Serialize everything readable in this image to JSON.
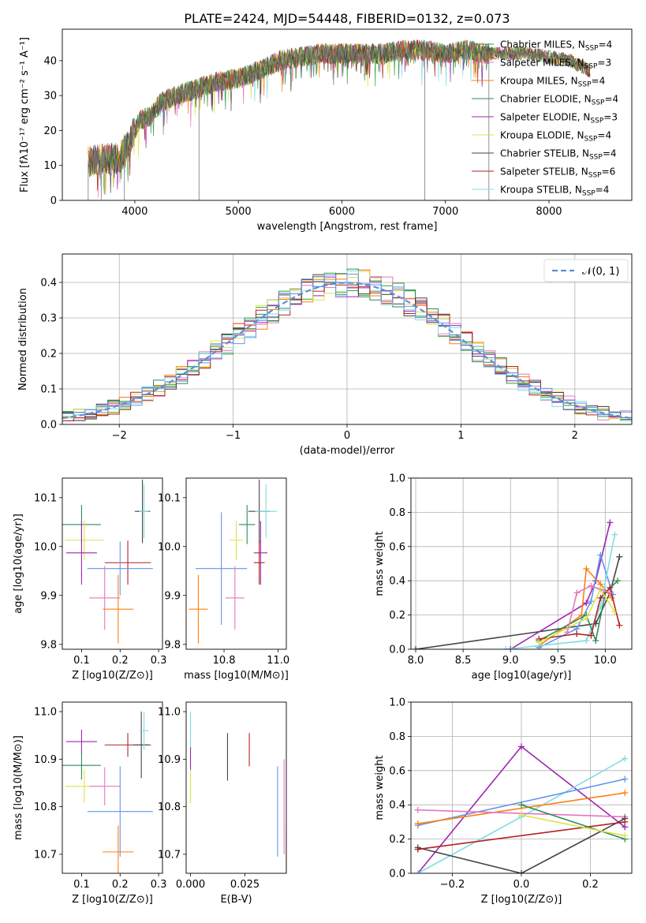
{
  "figure_title": "PLATE=2424, MJD=54448, FIBERID=0132, z=0.073",
  "colors": {
    "Chabrier MILES": "#2ca02c",
    "Salpeter MILES": "#e377c2",
    "Kroupa MILES": "#ff7f0e",
    "Chabrier ELODIE": "#2e8b57",
    "Salpeter ELODIE": "#9c27b0",
    "Kroupa ELODIE": "#dde34a",
    "Chabrier STELIB": "#444444",
    "Salpeter STELIB": "#b22222",
    "Kroupa STELIB": "#7fdde4",
    "extra": "#6495ed",
    "normal": "#5b8fd6"
  },
  "chart_data": [
    {
      "id": "spectrum",
      "type": "line",
      "xlabel": "wavelength [Angstrom, rest frame]",
      "ylabel": "Flux [fλ10⁻¹⁷ erg cm⁻² s⁻¹ A⁻¹]",
      "xlim": [
        3300,
        8800
      ],
      "ylim": [
        0,
        49
      ],
      "xticks": [
        4000,
        5000,
        6000,
        7000,
        8000
      ],
      "yticks": [
        0,
        10,
        20,
        30,
        40
      ],
      "legend_placement": "right",
      "legend": [
        {
          "name": "Chabrier MILES",
          "nssp": "4"
        },
        {
          "name": "Salpeter MILES",
          "nssp": "3"
        },
        {
          "name": "Kroupa MILES",
          "nssp": "4"
        },
        {
          "name": "Chabrier ELODIE",
          "nssp": "4"
        },
        {
          "name": "Salpeter ELODIE",
          "nssp": "3"
        },
        {
          "name": "Kroupa ELODIE",
          "nssp": "4"
        },
        {
          "name": "Chabrier STELIB",
          "nssp": "4"
        },
        {
          "name": "Salpeter STELIB",
          "nssp": "6"
        },
        {
          "name": "Kroupa STELIB",
          "nssp": "4"
        }
      ],
      "continuum": {
        "x": [
          3550,
          3700,
          3850,
          3950,
          4050,
          4150,
          4250,
          4400,
          4600,
          4800,
          5000,
          5200,
          5400,
          5600,
          5800,
          6000,
          6200,
          6400,
          6600,
          6800,
          7000,
          7200,
          7400,
          7600,
          7800,
          8000,
          8200,
          8400
        ],
        "y": [
          11,
          12,
          12,
          17,
          23,
          24,
          28,
          30,
          32,
          34,
          35,
          37,
          40,
          41,
          42,
          42,
          42,
          42,
          43,
          43,
          42,
          43,
          42,
          42,
          42,
          41,
          40,
          37
        ]
      },
      "dips": [
        [
          4620,
          0
        ],
        [
          6800,
          0
        ],
        [
          7420,
          0
        ],
        [
          3550,
          0
        ],
        [
          3900,
          0
        ]
      ]
    },
    {
      "id": "residuals",
      "type": "histogram",
      "xlabel": "(data-model)/error",
      "ylabel": "Normed distribution",
      "xlim": [
        -2.5,
        2.5
      ],
      "ylim": [
        0,
        0.48
      ],
      "xticks": [
        -2,
        -1,
        0,
        1,
        2
      ],
      "yticks": [
        0.0,
        0.1,
        0.2,
        0.3,
        0.4
      ],
      "grid": true,
      "legend_placement": "top-right",
      "legend": [
        "𝒩(0, 1)"
      ],
      "bin_width": 0.1
    },
    {
      "id": "age-vs-z",
      "type": "errorbar",
      "xlabel": "Z [log10(Z/Z⊙)]",
      "ylabel": "age  [log10(age/yr)]",
      "xlim": [
        0.05,
        0.31
      ],
      "ylim": [
        9.79,
        10.14
      ],
      "xticks": [
        0.1,
        0.2,
        0.3
      ],
      "yticks": [
        9.8,
        9.9,
        10.0,
        10.1
      ],
      "points": [
        {
          "series": "Chabrier ELODIE",
          "x": 0.1,
          "y": 10.045,
          "xerr": 0.05,
          "yerr": 0.04
        },
        {
          "series": "Kroupa ELODIE",
          "x": 0.107,
          "y": 10.013,
          "xerr": 0.05,
          "yerr": 0.04
        },
        {
          "series": "Salpeter ELODIE",
          "x": 0.1,
          "y": 9.987,
          "xerr": 0.04,
          "yerr": 0.065
        },
        {
          "series": "Chabrier STELIB",
          "x": 0.258,
          "y": 10.072,
          "xerr": 0.02,
          "yerr": 0.065
        },
        {
          "series": "Kroupa STELIB",
          "x": 0.262,
          "y": 10.072,
          "xerr": 0.012,
          "yerr": 0.055
        },
        {
          "series": "Salpeter STELIB",
          "x": 0.22,
          "y": 9.967,
          "xerr": 0.06,
          "yerr": 0.045
        },
        {
          "series": "extra",
          "x": 0.2,
          "y": 9.955,
          "xerr": 0.085,
          "yerr": 0.055
        },
        {
          "series": "Salpeter MILES",
          "x": 0.16,
          "y": 9.895,
          "xerr": 0.04,
          "yerr": 0.065
        },
        {
          "series": "Kroupa MILES",
          "x": 0.195,
          "y": 9.872,
          "xerr": 0.04,
          "yerr": 0.07
        }
      ]
    },
    {
      "id": "age-vs-mass",
      "type": "errorbar",
      "xlabel": "mass [log10(M/M⊙)]",
      "ylabel": "",
      "xlim": [
        10.66,
        11.03
      ],
      "ylim": [
        9.79,
        10.14
      ],
      "xticks": [
        10.8,
        11.0
      ],
      "yticks": [
        9.8,
        9.9,
        10.0,
        10.1
      ],
      "points": [
        {
          "series": "Chabrier STELIB",
          "x": 10.93,
          "y": 10.072,
          "xerr": 0.04,
          "yerr": 0.065
        },
        {
          "series": "Kroupa STELIB",
          "x": 10.955,
          "y": 10.072,
          "xerr": 0.04,
          "yerr": 0.055
        },
        {
          "series": "Chabrier ELODIE",
          "x": 10.885,
          "y": 10.045,
          "xerr": 0.03,
          "yerr": 0.04
        },
        {
          "series": "Kroupa ELODIE",
          "x": 10.845,
          "y": 10.013,
          "xerr": 0.025,
          "yerr": 0.04
        },
        {
          "series": "Salpeter ELODIE",
          "x": 10.935,
          "y": 9.987,
          "xerr": 0.025,
          "yerr": 0.065
        },
        {
          "series": "Salpeter STELIB",
          "x": 10.93,
          "y": 9.967,
          "xerr": 0.02,
          "yerr": 0.045
        },
        {
          "series": "extra",
          "x": 10.79,
          "y": 9.955,
          "xerr": 0.095,
          "yerr": 0.115
        },
        {
          "series": "Salpeter MILES",
          "x": 10.84,
          "y": 9.895,
          "xerr": 0.035,
          "yerr": 0.065
        },
        {
          "series": "Kroupa MILES",
          "x": 10.705,
          "y": 9.872,
          "xerr": 0.035,
          "yerr": 0.07
        }
      ]
    },
    {
      "id": "weight-vs-age",
      "type": "line",
      "xlabel": "age  [log10(age/yr)]",
      "ylabel": "mass weight",
      "xlim": [
        7.95,
        10.28
      ],
      "ylim": [
        0,
        1.0
      ],
      "xticks": [
        8.0,
        8.5,
        9.0,
        9.5,
        10.0
      ],
      "yticks": [
        0.0,
        0.2,
        0.4,
        0.6,
        0.8,
        1.0
      ],
      "grid": true,
      "series": [
        {
          "name": "Chabrier STELIB",
          "x": [
            8.0,
            9.9,
            10.05,
            10.15
          ],
          "y": [
            0.0,
            0.15,
            0.33,
            0.54
          ]
        },
        {
          "name": "Salpeter ELODIE",
          "x": [
            9.0,
            9.8,
            9.9,
            10.05
          ],
          "y": [
            0.0,
            0.27,
            0.4,
            0.74
          ]
        },
        {
          "name": "Kroupa MILES",
          "x": [
            9.3,
            9.75,
            9.8,
            9.95,
            10.07
          ],
          "y": [
            0.02,
            0.2,
            0.47,
            0.38,
            0.3
          ]
        },
        {
          "name": "extra",
          "x": [
            9.3,
            9.7,
            9.85,
            9.95,
            10.08
          ],
          "y": [
            0.01,
            0.12,
            0.28,
            0.55,
            0.32
          ]
        },
        {
          "name": "Kroupa STELIB",
          "x": [
            8.95,
            9.8,
            9.95,
            10.1
          ],
          "y": [
            0.0,
            0.05,
            0.25,
            0.67
          ]
        },
        {
          "name": "Chabrier ELODIE",
          "x": [
            9.3,
            9.8,
            9.9,
            10.0,
            10.13
          ],
          "y": [
            0.05,
            0.2,
            0.05,
            0.33,
            0.4
          ]
        },
        {
          "name": "Salpeter STELIB",
          "x": [
            9.3,
            9.7,
            9.85,
            9.95,
            10.05,
            10.15
          ],
          "y": [
            0.06,
            0.09,
            0.08,
            0.3,
            0.36,
            0.14
          ]
        },
        {
          "name": "Kroupa ELODIE",
          "x": [
            9.3,
            9.8,
            9.95,
            10.1
          ],
          "y": [
            0.04,
            0.18,
            0.35,
            0.22
          ]
        },
        {
          "name": "Salpeter MILES",
          "x": [
            9.6,
            9.7,
            9.85,
            10.05
          ],
          "y": [
            0.1,
            0.33,
            0.37,
            0.33
          ]
        }
      ]
    },
    {
      "id": "mass-vs-z",
      "type": "errorbar",
      "xlabel": "Z [log10(Z/Z⊙)]",
      "ylabel": "mass [log10(M/M⊙)]",
      "xlim": [
        0.05,
        0.31
      ],
      "ylim": [
        10.66,
        11.02
      ],
      "xticks": [
        0.1,
        0.2,
        0.3
      ],
      "yticks": [
        10.7,
        10.8,
        10.9,
        11.0
      ],
      "points": [
        {
          "series": "Salpeter ELODIE",
          "x": 0.1,
          "y": 10.937,
          "xerr": 0.04,
          "yerr": 0.025
        },
        {
          "series": "Salpeter STELIB",
          "x": 0.22,
          "y": 10.93,
          "xerr": 0.06,
          "yerr": 0.025
        },
        {
          "series": "Chabrier STELIB",
          "x": 0.255,
          "y": 10.93,
          "xerr": 0.02,
          "yerr": 0.07
        },
        {
          "series": "Kroupa STELIB",
          "x": 0.262,
          "y": 10.96,
          "xerr": 0.012,
          "yerr": 0.04
        },
        {
          "series": "Chabrier ELODIE",
          "x": 0.1,
          "y": 10.887,
          "xerr": 0.05,
          "yerr": 0.03
        },
        {
          "series": "Kroupa ELODIE",
          "x": 0.107,
          "y": 10.843,
          "xerr": 0.05,
          "yerr": 0.035
        },
        {
          "series": "Salpeter MILES",
          "x": 0.16,
          "y": 10.843,
          "xerr": 0.04,
          "yerr": 0.04
        },
        {
          "series": "extra",
          "x": 0.2,
          "y": 10.79,
          "xerr": 0.085,
          "yerr": 0.095
        },
        {
          "series": "Kroupa MILES",
          "x": 0.195,
          "y": 10.705,
          "xerr": 0.04,
          "yerr": 0.055
        }
      ]
    },
    {
      "id": "mass-vs-ebv",
      "type": "errorbar",
      "xlabel": "E(B-V)",
      "ylabel": "",
      "xlim": [
        -0.002,
        0.044
      ],
      "ylim": [
        10.66,
        11.02
      ],
      "xticks": [
        0.0,
        0.025
      ],
      "xtick_labels": [
        "0.000",
        "0.025"
      ],
      "yticks": [
        10.7,
        10.8,
        10.9,
        11.0
      ],
      "points": [
        {
          "series": "Kroupa STELIB",
          "x": 0.0,
          "y": 10.96,
          "xerr": 0,
          "yerr": 0.04
        },
        {
          "series": "Salpeter ELODIE",
          "x": 0.0,
          "y": 10.9,
          "xerr": 0,
          "yerr": 0.025
        },
        {
          "series": "Kroupa ELODIE",
          "x": 0.0,
          "y": 10.843,
          "xerr": 0,
          "yerr": 0.035
        },
        {
          "series": "Chabrier STELIB",
          "x": 0.017,
          "y": 10.905,
          "xerr": 0,
          "yerr": 0.05
        },
        {
          "series": "Salpeter STELIB",
          "x": 0.027,
          "y": 10.92,
          "xerr": 0,
          "yerr": 0.035
        },
        {
          "series": "extra",
          "x": 0.04,
          "y": 10.79,
          "xerr": 0,
          "yerr": 0.095
        },
        {
          "series": "Salpeter MILES",
          "x": 0.043,
          "y": 10.8,
          "xerr": 0,
          "yerr": 0.1
        },
        {
          "series": "Kroupa MILES",
          "x": 0.044,
          "y": 10.705,
          "xerr": 0,
          "yerr": 0.055
        }
      ]
    },
    {
      "id": "weight-vs-z",
      "type": "line",
      "xlabel": "Z [log10(Z/Z⊙)]",
      "ylabel": "mass weight",
      "xlim": [
        -0.32,
        0.32
      ],
      "ylim": [
        0,
        1.0
      ],
      "xticks": [
        -0.2,
        0.0,
        0.2
      ],
      "yticks": [
        0.0,
        0.2,
        0.4,
        0.6,
        0.8,
        1.0
      ],
      "grid": true,
      "series": [
        {
          "name": "Salpeter ELODIE",
          "x": [
            -0.3,
            0.0,
            0.3
          ],
          "y": [
            0.0,
            0.74,
            0.27
          ]
        },
        {
          "name": "Kroupa STELIB",
          "x": [
            -0.3,
            0.0,
            0.3
          ],
          "y": [
            0.0,
            0.33,
            0.67
          ]
        },
        {
          "name": "extra",
          "x": [
            -0.3,
            0.3
          ],
          "y": [
            0.28,
            0.55
          ]
        },
        {
          "name": "Kroupa MILES",
          "x": [
            -0.3,
            0.3
          ],
          "y": [
            0.29,
            0.47
          ]
        },
        {
          "name": "Salpeter MILES",
          "x": [
            -0.3,
            0.3
          ],
          "y": [
            0.37,
            0.33
          ]
        },
        {
          "name": "Chabrier STELIB",
          "x": [
            -0.3,
            0.0,
            0.3
          ],
          "y": [
            0.15,
            0.0,
            0.32
          ]
        },
        {
          "name": "Salpeter STELIB",
          "x": [
            -0.3,
            0.3
          ],
          "y": [
            0.14,
            0.3
          ]
        },
        {
          "name": "Chabrier ELODIE",
          "x": [
            0.0,
            0.3
          ],
          "y": [
            0.4,
            0.2
          ]
        },
        {
          "name": "Kroupa ELODIE",
          "x": [
            0.0,
            0.3
          ],
          "y": [
            0.34,
            0.22
          ]
        }
      ]
    }
  ]
}
